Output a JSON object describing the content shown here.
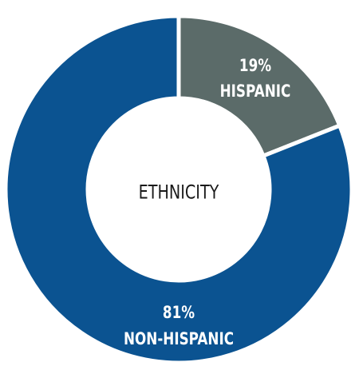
{
  "chart_data": {
    "type": "donut",
    "title": "ETHNICITY",
    "categories": [
      "HISPANIC",
      "NON-HISPANIC"
    ],
    "values": [
      19,
      81
    ],
    "value_labels": [
      "19%",
      "81%"
    ],
    "colors": [
      "#5b6b69",
      "#0b5391"
    ]
  }
}
